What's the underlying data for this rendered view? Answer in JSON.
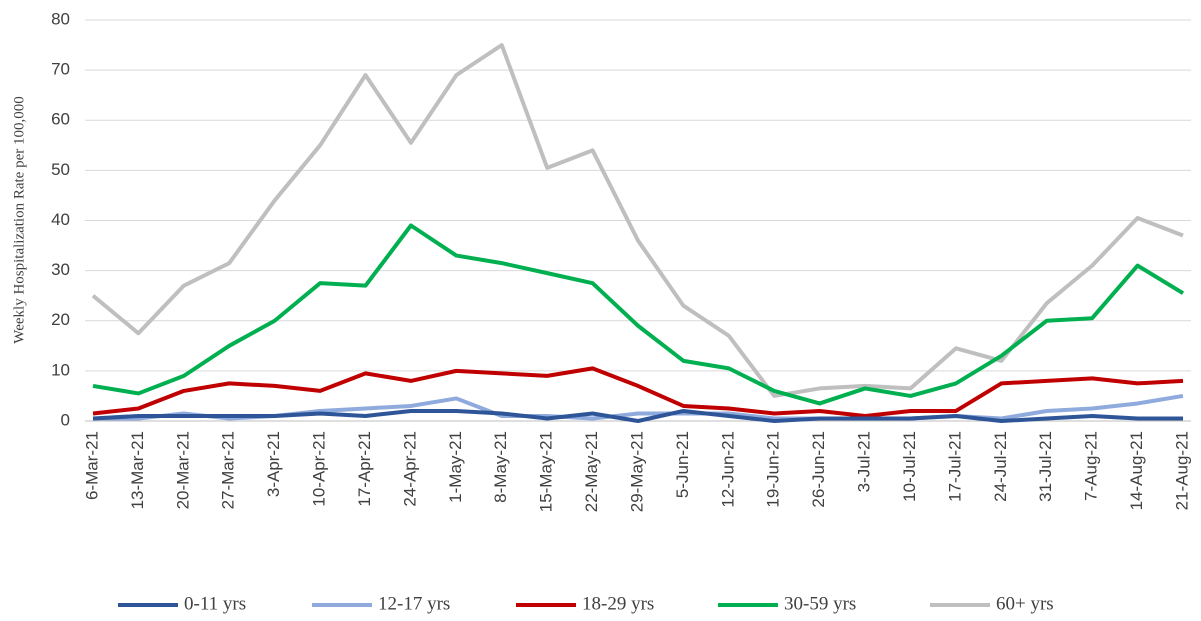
{
  "chart_data": {
    "type": "line",
    "y_label": "Weekly Hospitalization Rate per 100,000",
    "categories": [
      "6-Mar-21",
      "13-Mar-21",
      "20-Mar-21",
      "27-Mar-21",
      "3-Apr-21",
      "10-Apr-21",
      "17-Apr-21",
      "24-Apr-21",
      "1-May-21",
      "8-May-21",
      "15-May-21",
      "22-May-21",
      "29-May-21",
      "5-Jun-21",
      "12-Jun-21",
      "19-Jun-21",
      "26-Jun-21",
      "3-Jul-21",
      "10-Jul-21",
      "17-Jul-21",
      "24-Jul-21",
      "31-Jul-21",
      "7-Aug-21",
      "14-Aug-21",
      "21-Aug-21"
    ],
    "series": [
      {
        "name": "0-11 yrs",
        "color": "#2e5597",
        "values": [
          0.5,
          1,
          1,
          1,
          1,
          1.5,
          1,
          2,
          2,
          1.5,
          0.5,
          1.5,
          0,
          2,
          1,
          0,
          0.5,
          0.5,
          0.5,
          1,
          0,
          0.5,
          1,
          0.5,
          0.5
        ]
      },
      {
        "name": "12-17 yrs",
        "color": "#8faadc",
        "values": [
          0.5,
          0.5,
          1.5,
          0.5,
          1,
          2,
          2.5,
          3,
          4.5,
          1,
          1,
          0.5,
          1.5,
          1.5,
          1.5,
          0.5,
          0.5,
          0.5,
          0.5,
          1,
          0.5,
          2,
          2.5,
          3.5,
          5
        ]
      },
      {
        "name": "18-29 yrs",
        "color": "#c00000",
        "values": [
          1.5,
          2.5,
          6,
          7.5,
          7,
          6,
          9.5,
          8,
          10,
          9.5,
          9,
          10.5,
          7,
          3,
          2.5,
          1.5,
          2,
          1,
          2,
          2,
          7.5,
          8,
          8.5,
          7.5,
          8
        ]
      },
      {
        "name": "30-59 yrs",
        "color": "#00b050",
        "values": [
          7,
          5.5,
          9,
          15,
          20,
          27.5,
          27,
          39,
          33,
          31.5,
          29.5,
          27.5,
          19,
          12,
          10.5,
          6,
          3.5,
          6.5,
          5,
          7.5,
          13,
          20,
          20.5,
          31,
          25.5
        ]
      },
      {
        "name": "60+ yrs",
        "color": "#bfbfbf",
        "values": [
          25,
          17.5,
          27,
          31.5,
          44,
          55,
          69,
          55.5,
          69,
          75,
          50.5,
          54,
          36,
          23,
          17,
          5,
          6.5,
          7,
          6.5,
          14.5,
          12,
          23.5,
          31,
          40.5,
          37
        ]
      }
    ],
    "ylim": [
      0,
      80
    ],
    "yticks": [
      0,
      10,
      20,
      30,
      40,
      50,
      60,
      70,
      80
    ],
    "grid": true,
    "legend": "bottom"
  }
}
